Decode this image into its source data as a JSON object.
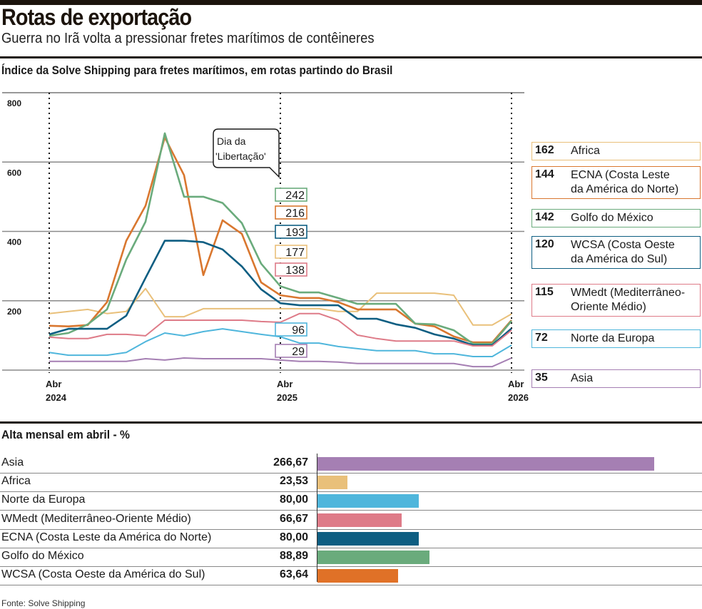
{
  "header": {
    "title": "Rotas de exportação",
    "subtitle": "Guerra no Irã volta a pressionar fretes marítimos de contêineres"
  },
  "chart_data": [
    {
      "type": "line",
      "title": "Índice da Solve Shipping para fretes marítimos, em rotas partindo do Brasil",
      "xlabel": "",
      "ylabel": "",
      "ylim": [
        0,
        800
      ],
      "yticks": [
        "800",
        "600",
        "400",
        "200"
      ],
      "ytick_values": [
        800,
        600,
        400,
        200
      ],
      "x_count": 25,
      "xticks": [
        {
          "index": 0,
          "line1": "Abr",
          "line2": "2024"
        },
        {
          "index": 12,
          "line1": "Abr",
          "line2": "2025"
        },
        {
          "index": 24,
          "line1": "Abr",
          "line2": "2026"
        }
      ],
      "grid": true,
      "annotation": {
        "index": 12,
        "line1": "Dia da",
        "line2": "'Libertação'"
      },
      "legend_placement": "right",
      "series": [
        {
          "name": "Africa",
          "color": "#e9c07a",
          "legend_value": "162",
          "legend_lines": [
            "Africa"
          ],
          "label_at_annotation": "177",
          "values": [
            163,
            169,
            175,
            163,
            169,
            235,
            154,
            154,
            177,
            177,
            177,
            177,
            177,
            177,
            177,
            169,
            169,
            222,
            222,
            222,
            222,
            216,
            130,
            130,
            162
          ]
        },
        {
          "name": "ECNA (Costa Leste da América do Norte)",
          "color": "#d9772f",
          "legend_value": "144",
          "legend_lines": [
            "ECNA (Costa Leste",
            "da América do Norte)"
          ],
          "label_at_annotation": "216",
          "values": [
            128,
            126,
            130,
            196,
            373,
            474,
            671,
            562,
            274,
            432,
            393,
            253,
            216,
            208,
            208,
            196,
            175,
            175,
            175,
            134,
            126,
            97,
            80,
            80,
            144
          ]
        },
        {
          "name": "Golfo do México",
          "color": "#6aab7c",
          "legend_value": "142",
          "legend_lines": [
            "Golfo do México"
          ],
          "label_at_annotation": "242",
          "values": [
            99,
            107,
            132,
            175,
            319,
            428,
            683,
            500,
            500,
            482,
            424,
            307,
            242,
            224,
            224,
            208,
            191,
            191,
            191,
            134,
            132,
            115,
            76,
            76,
            142
          ]
        },
        {
          "name": "WCSA (Costa Oeste da América do Sul)",
          "color": "#0e5e82",
          "legend_value": "120",
          "legend_lines": [
            "WCSA (Costa Oeste",
            "da América do Sul)"
          ],
          "label_at_annotation": "193",
          "values": [
            103,
            119,
            119,
            119,
            157,
            266,
            373,
            373,
            369,
            348,
            299,
            233,
            193,
            187,
            187,
            187,
            148,
            148,
            132,
            122,
            103,
            91,
            72,
            72,
            120
          ]
        },
        {
          "name": "WMedt (Mediterrâneo-Oriente Médio)",
          "color": "#de7b88",
          "legend_value": "115",
          "legend_lines": [
            "WMedt (Mediterrâneo-",
            "Oriente Médio)"
          ],
          "label_at_annotation": "138",
          "values": [
            95,
            91,
            91,
            103,
            103,
            99,
            144,
            144,
            144,
            144,
            144,
            140,
            138,
            163,
            163,
            144,
            101,
            91,
            84,
            84,
            84,
            84,
            70,
            70,
            115
          ]
        },
        {
          "name": "Norte da Europa",
          "color": "#4fb6dc",
          "legend_value": "72",
          "legend_lines": [
            "Norte da Europa"
          ],
          "label_at_annotation": "96",
          "values": [
            51,
            43,
            43,
            43,
            51,
            82,
            107,
            99,
            111,
            119,
            111,
            103,
            96,
            78,
            78,
            68,
            62,
            56,
            56,
            56,
            47,
            47,
            39,
            39,
            72
          ]
        },
        {
          "name": "Asia",
          "color": "#a57fb3",
          "legend_value": "35",
          "legend_lines": [
            "Asia"
          ],
          "label_at_annotation": "29",
          "values": [
            25,
            25,
            25,
            25,
            25,
            33,
            29,
            35,
            33,
            33,
            33,
            33,
            29,
            25,
            25,
            23,
            19,
            19,
            19,
            19,
            19,
            19,
            10,
            10,
            35
          ]
        }
      ]
    },
    {
      "type": "bar",
      "orientation": "horizontal",
      "title": "Alta mensal em abril - %",
      "categories": [
        "Asia",
        "Africa",
        "Norte da Europa",
        "WMedt (Mediterrâneo-Oriente Médio)",
        "ECNA (Costa Leste da América do Norte)",
        "Golfo do México",
        "WCSA (Costa Oeste da América do Sul)"
      ],
      "values": [
        266.67,
        23.53,
        80.0,
        66.67,
        80.0,
        88.89,
        63.64
      ],
      "value_labels": [
        "266,67",
        "23,53",
        "80,00",
        "66,67",
        "80,00",
        "88,89",
        "63,64"
      ],
      "colors": [
        "#a57fb3",
        "#e9c07a",
        "#4fb6dc",
        "#de7b88",
        "#0e5e82",
        "#6aab7c",
        "#e07127"
      ],
      "xlim": [
        0,
        300
      ]
    }
  ],
  "footer": {
    "source": "Fonte: Solve Shipping"
  }
}
